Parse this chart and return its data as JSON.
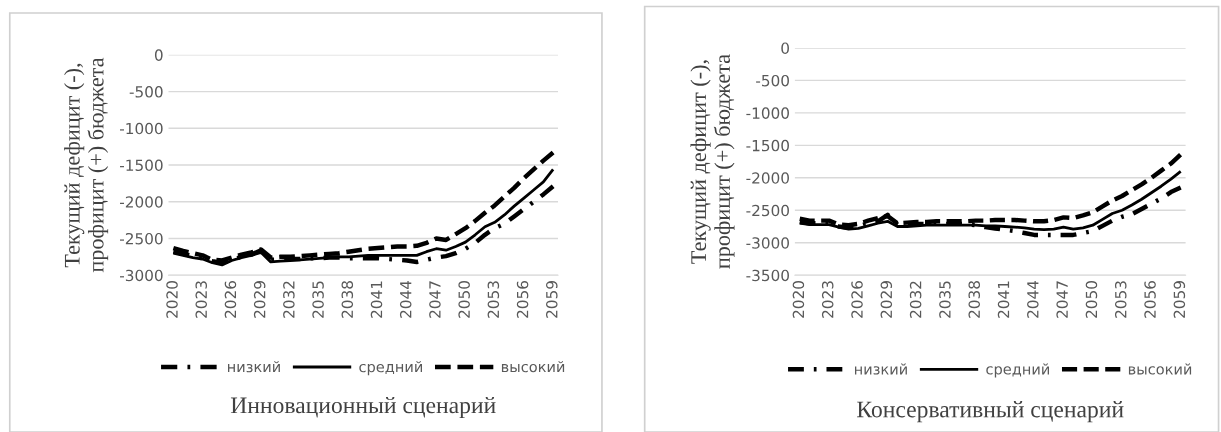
{
  "chart_data": [
    {
      "type": "line",
      "title": "Инновационный сценарий",
      "ylabel": "Текущий дефицит (-),\nпрофицит (+) бюджета",
      "categories": [
        "2020",
        null,
        null,
        "2023",
        null,
        null,
        "2026",
        null,
        null,
        "2029",
        null,
        null,
        "2032",
        null,
        null,
        "2035",
        null,
        null,
        "2038",
        null,
        null,
        "2041",
        null,
        null,
        "2044",
        null,
        null,
        "2047",
        null,
        null,
        "2050",
        null,
        null,
        "2053",
        null,
        null,
        "2056",
        null,
        null,
        "2059"
      ],
      "ylim": [
        -3000,
        0
      ],
      "yticks": [
        -3000,
        -2500,
        -2000,
        -1500,
        -1000,
        -500,
        0
      ],
      "grid": "y",
      "legend": "bottom",
      "marker": "none",
      "series": [
        {
          "name": "низкий",
          "color": "#000000",
          "line_style": "dashdot",
          "values": [
            -2680,
            -2710,
            -2740,
            -2770,
            -2810,
            -2830,
            -2790,
            -2750,
            -2720,
            -2660,
            -2790,
            -2790,
            -2780,
            -2780,
            -2770,
            -2770,
            -2760,
            -2760,
            -2770,
            -2770,
            -2770,
            -2770,
            -2780,
            -2790,
            -2800,
            -2820,
            -2790,
            -2760,
            -2740,
            -2700,
            -2640,
            -2560,
            -2450,
            -2360,
            -2300,
            -2200,
            -2100,
            -2000,
            -1900,
            -1790
          ]
        },
        {
          "name": "средний",
          "color": "#000000",
          "line_style": "solid",
          "values": [
            -2700,
            -2730,
            -2760,
            -2780,
            -2830,
            -2860,
            -2800,
            -2760,
            -2730,
            -2690,
            -2820,
            -2810,
            -2800,
            -2790,
            -2780,
            -2770,
            -2760,
            -2750,
            -2750,
            -2740,
            -2730,
            -2730,
            -2730,
            -2730,
            -2730,
            -2730,
            -2680,
            -2640,
            -2660,
            -2610,
            -2550,
            -2450,
            -2340,
            -2280,
            -2180,
            -2060,
            -1950,
            -1840,
            -1730,
            -1560
          ]
        },
        {
          "name": "высокий",
          "color": "#000000",
          "line_style": "dashed",
          "values": [
            -2630,
            -2670,
            -2700,
            -2730,
            -2790,
            -2800,
            -2760,
            -2720,
            -2690,
            -2650,
            -2760,
            -2750,
            -2750,
            -2740,
            -2730,
            -2720,
            -2710,
            -2700,
            -2680,
            -2660,
            -2640,
            -2630,
            -2620,
            -2610,
            -2610,
            -2600,
            -2560,
            -2500,
            -2520,
            -2440,
            -2360,
            -2260,
            -2150,
            -2050,
            -1930,
            -1810,
            -1680,
            -1560,
            -1440,
            -1330
          ]
        }
      ]
    },
    {
      "type": "line",
      "title": "Консервативный сценарий",
      "ylabel": "Текущий дефицит (-),\nпрофицит (+) бюджета",
      "categories": [
        "2020",
        null,
        null,
        "2023",
        null,
        null,
        "2026",
        null,
        null,
        "2029",
        null,
        null,
        "2032",
        null,
        null,
        "2035",
        null,
        null,
        "2038",
        null,
        null,
        "2041",
        null,
        null,
        "2044",
        null,
        null,
        "2047",
        null,
        null,
        "2050",
        null,
        null,
        "2053",
        null,
        null,
        "2056",
        null,
        null,
        "2059"
      ],
      "ylim": [
        -3500,
        0
      ],
      "yticks": [
        -3500,
        -3000,
        -2500,
        -2000,
        -1500,
        -1000,
        -500,
        0
      ],
      "grid": "y",
      "legend": "bottom",
      "marker": "none",
      "series": [
        {
          "name": "низкий",
          "color": "#000000",
          "line_style": "dashdot",
          "values": [
            -2680,
            -2700,
            -2700,
            -2710,
            -2750,
            -2770,
            -2750,
            -2700,
            -2670,
            -2570,
            -2720,
            -2720,
            -2710,
            -2710,
            -2710,
            -2710,
            -2710,
            -2710,
            -2730,
            -2760,
            -2780,
            -2800,
            -2820,
            -2850,
            -2880,
            -2880,
            -2880,
            -2880,
            -2880,
            -2850,
            -2820,
            -2740,
            -2660,
            -2600,
            -2560,
            -2480,
            -2400,
            -2320,
            -2220,
            -2150
          ]
        },
        {
          "name": "средний",
          "color": "#000000",
          "line_style": "solid",
          "values": [
            -2700,
            -2720,
            -2720,
            -2720,
            -2760,
            -2790,
            -2780,
            -2740,
            -2700,
            -2670,
            -2750,
            -2750,
            -2740,
            -2730,
            -2730,
            -2730,
            -2730,
            -2730,
            -2730,
            -2740,
            -2740,
            -2750,
            -2760,
            -2770,
            -2790,
            -2800,
            -2790,
            -2760,
            -2790,
            -2770,
            -2730,
            -2640,
            -2550,
            -2500,
            -2420,
            -2330,
            -2230,
            -2130,
            -2020,
            -1900
          ]
        },
        {
          "name": "высокий",
          "color": "#000000",
          "line_style": "dashed",
          "values": [
            -2630,
            -2660,
            -2660,
            -2660,
            -2720,
            -2730,
            -2710,
            -2660,
            -2620,
            -2590,
            -2700,
            -2690,
            -2680,
            -2680,
            -2670,
            -2670,
            -2670,
            -2670,
            -2660,
            -2660,
            -2650,
            -2650,
            -2650,
            -2660,
            -2670,
            -2670,
            -2650,
            -2610,
            -2620,
            -2580,
            -2530,
            -2440,
            -2350,
            -2280,
            -2190,
            -2100,
            -2000,
            -1890,
            -1780,
            -1640
          ]
        }
      ]
    }
  ]
}
